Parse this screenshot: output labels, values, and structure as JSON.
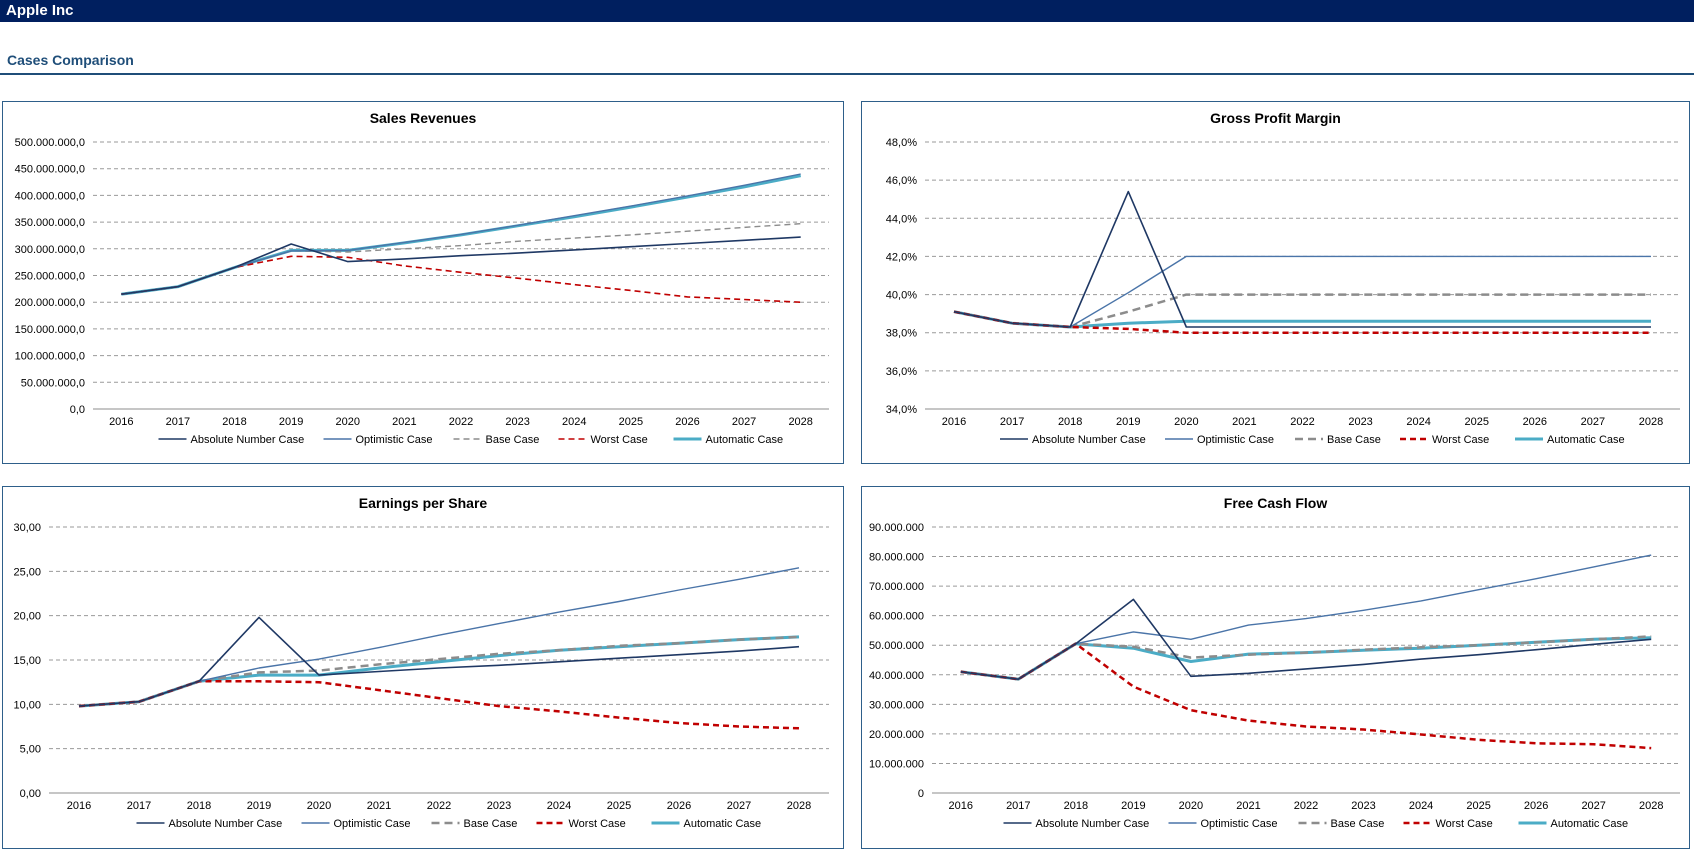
{
  "header": {
    "title": "Apple Inc"
  },
  "section": {
    "title": "Cases Comparison"
  },
  "chart_data": [
    {
      "id": "sales",
      "type": "line",
      "title": "Sales Revenues",
      "categories": [
        "2016",
        "2017",
        "2018",
        "2019",
        "2020",
        "2021",
        "2022",
        "2023",
        "2024",
        "2025",
        "2026",
        "2027",
        "2028"
      ],
      "ylim": [
        0,
        500000000
      ],
      "yticks": [
        0,
        50000000,
        100000000,
        150000000,
        200000000,
        250000000,
        300000000,
        350000000,
        400000000,
        450000000,
        500000000
      ],
      "ytick_labels": [
        "0,0",
        "50.000.000,0",
        "100.000.000,0",
        "150.000.000,0",
        "200.000.000,0",
        "250.000.000,0",
        "300.000.000,0",
        "350.000.000,0",
        "400.000.000,0",
        "450.000.000,0",
        "500.000.000,0"
      ],
      "grid": true,
      "legend_position": "bottom",
      "series": [
        {
          "name": "Absolute Number Case",
          "color": "#1f3864",
          "dash": "",
          "width": 1.6,
          "values": [
            215000000,
            229000000,
            265000000,
            309000000,
            276000000,
            281000000,
            287000000,
            292000000,
            298000000,
            304000000,
            310000000,
            316000000,
            322000000
          ]
        },
        {
          "name": "Optimistic Case",
          "color": "#4a74a8",
          "dash": "",
          "width": 1.4,
          "values": [
            215000000,
            229000000,
            265000000,
            296000000,
            297000000,
            312000000,
            327000000,
            344000000,
            362000000,
            380000000,
            399000000,
            419000000,
            440000000
          ]
        },
        {
          "name": "Base Case",
          "color": "#8c8c8c",
          "dash": "6,4",
          "width": 1.4,
          "values": [
            215000000,
            229000000,
            265000000,
            296000000,
            294000000,
            300000000,
            306000000,
            314000000,
            320000000,
            326000000,
            333000000,
            340000000,
            347000000
          ]
        },
        {
          "name": "Worst Case",
          "color": "#c00000",
          "dash": "6,4",
          "width": 1.6,
          "values": [
            215000000,
            229000000,
            265000000,
            286000000,
            284000000,
            268000000,
            256000000,
            245000000,
            233000000,
            222000000,
            210000000,
            205000000,
            200000000
          ]
        },
        {
          "name": "Automatic Case",
          "color": "#4bacc6",
          "dash": "",
          "width": 3,
          "values": [
            215000000,
            229000000,
            265000000,
            297000000,
            297000000,
            311000000,
            326000000,
            343000000,
            360000000,
            378000000,
            397000000,
            416000000,
            437000000
          ]
        }
      ]
    },
    {
      "id": "gpm",
      "type": "line",
      "title": "Gross Profit Margin",
      "categories": [
        "2016",
        "2017",
        "2018",
        "2019",
        "2020",
        "2021",
        "2022",
        "2023",
        "2024",
        "2025",
        "2026",
        "2027",
        "2028"
      ],
      "ylim": [
        34,
        48
      ],
      "yticks": [
        34,
        36,
        38,
        40,
        42,
        44,
        46,
        48
      ],
      "ytick_labels": [
        "34,0%",
        "36,0%",
        "38,0%",
        "40,0%",
        "42,0%",
        "44,0%",
        "46,0%",
        "48,0%"
      ],
      "grid": true,
      "legend_position": "bottom",
      "series": [
        {
          "name": "Absolute Number Case",
          "color": "#1f3864",
          "dash": "",
          "width": 1.6,
          "values": [
            39.1,
            38.5,
            38.3,
            45.4,
            38.3,
            38.3,
            38.3,
            38.3,
            38.3,
            38.3,
            38.3,
            38.3,
            38.3
          ]
        },
        {
          "name": "Optimistic Case",
          "color": "#4a74a8",
          "dash": "",
          "width": 1.4,
          "values": [
            39.1,
            38.5,
            38.3,
            40.1,
            42.0,
            42.0,
            42.0,
            42.0,
            42.0,
            42.0,
            42.0,
            42.0,
            42.0
          ]
        },
        {
          "name": "Base Case",
          "color": "#8c8c8c",
          "dash": "8,5",
          "width": 2.5,
          "values": [
            39.1,
            38.5,
            38.3,
            39.1,
            40.0,
            40.0,
            40.0,
            40.0,
            40.0,
            40.0,
            40.0,
            40.0,
            40.0
          ]
        },
        {
          "name": "Worst Case",
          "color": "#c00000",
          "dash": "6,4",
          "width": 2.5,
          "values": [
            39.1,
            38.5,
            38.3,
            38.2,
            38.0,
            38.0,
            38.0,
            38.0,
            38.0,
            38.0,
            38.0,
            38.0,
            38.0
          ]
        },
        {
          "name": "Automatic Case",
          "color": "#4bacc6",
          "dash": "",
          "width": 3,
          "values": [
            39.1,
            38.5,
            38.3,
            38.5,
            38.6,
            38.6,
            38.6,
            38.6,
            38.6,
            38.6,
            38.6,
            38.6,
            38.6
          ]
        }
      ]
    },
    {
      "id": "eps",
      "type": "line",
      "title": "Earnings per Share",
      "categories": [
        "2016",
        "2017",
        "2018",
        "2019",
        "2020",
        "2021",
        "2022",
        "2023",
        "2024",
        "2025",
        "2026",
        "2027",
        "2028"
      ],
      "ylim": [
        0,
        30
      ],
      "yticks": [
        0,
        5,
        10,
        15,
        20,
        25,
        30
      ],
      "ytick_labels": [
        "0,00",
        "5,00",
        "10,00",
        "15,00",
        "20,00",
        "25,00",
        "30,00"
      ],
      "grid": true,
      "legend_position": "bottom",
      "series": [
        {
          "name": "Absolute Number Case",
          "color": "#1f3864",
          "dash": "",
          "width": 1.6,
          "values": [
            9.8,
            10.3,
            12.6,
            19.8,
            13.3,
            13.7,
            14.1,
            14.4,
            14.8,
            15.2,
            15.6,
            16.0,
            16.5
          ]
        },
        {
          "name": "Optimistic Case",
          "color": "#4a74a8",
          "dash": "",
          "width": 1.4,
          "values": [
            9.8,
            10.3,
            12.6,
            14.1,
            15.1,
            16.4,
            17.8,
            19.1,
            20.4,
            21.6,
            22.9,
            24.1,
            25.4
          ]
        },
        {
          "name": "Base Case",
          "color": "#8c8c8c",
          "dash": "8,5",
          "width": 2.5,
          "values": [
            9.8,
            10.3,
            12.6,
            13.6,
            13.8,
            14.5,
            15.1,
            15.7,
            16.1,
            16.6,
            16.9,
            17.3,
            17.6
          ]
        },
        {
          "name": "Worst Case",
          "color": "#c00000",
          "dash": "6,4",
          "width": 2.5,
          "values": [
            9.8,
            10.3,
            12.6,
            12.6,
            12.5,
            11.6,
            10.7,
            9.8,
            9.2,
            8.5,
            7.9,
            7.5,
            7.3
          ]
        },
        {
          "name": "Automatic Case",
          "color": "#4bacc6",
          "dash": "",
          "width": 3,
          "values": [
            9.8,
            10.3,
            12.6,
            13.3,
            13.3,
            14.1,
            14.8,
            15.5,
            16.1,
            16.5,
            16.9,
            17.3,
            17.6
          ]
        }
      ]
    },
    {
      "id": "fcf",
      "type": "line",
      "title": "Free Cash Flow",
      "categories": [
        "2016",
        "2017",
        "2018",
        "2019",
        "2020",
        "2021",
        "2022",
        "2023",
        "2024",
        "2025",
        "2026",
        "2027",
        "2028"
      ],
      "ylim": [
        0,
        90000000
      ],
      "yticks": [
        0,
        10000000,
        20000000,
        30000000,
        40000000,
        50000000,
        60000000,
        70000000,
        80000000,
        90000000
      ],
      "ytick_labels": [
        "0",
        "10.000.000",
        "20.000.000",
        "30.000.000",
        "40.000.000",
        "50.000.000",
        "60.000.000",
        "70.000.000",
        "80.000.000",
        "90.000.000"
      ],
      "grid": true,
      "legend_position": "bottom",
      "series": [
        {
          "name": "Absolute Number Case",
          "color": "#1f3864",
          "dash": "",
          "width": 1.6,
          "values": [
            41000000,
            38500000,
            50500000,
            65500000,
            39500000,
            40500000,
            42000000,
            43500000,
            45300000,
            46800000,
            48500000,
            50300000,
            52000000
          ]
        },
        {
          "name": "Optimistic Case",
          "color": "#4a74a8",
          "dash": "",
          "width": 1.4,
          "values": [
            41000000,
            38500000,
            50500000,
            54500000,
            52000000,
            56800000,
            59000000,
            61800000,
            65000000,
            68800000,
            72500000,
            76500000,
            80500000
          ]
        },
        {
          "name": "Base Case",
          "color": "#8c8c8c",
          "dash": "8,5",
          "width": 2.5,
          "values": [
            41000000,
            38500000,
            50500000,
            49500000,
            45800000,
            46800000,
            47500000,
            48500000,
            49300000,
            50000000,
            51000000,
            52000000,
            53000000
          ]
        },
        {
          "name": "Worst Case",
          "color": "#c00000",
          "dash": "6,4",
          "width": 2.5,
          "values": [
            41000000,
            38500000,
            50500000,
            36000000,
            28000000,
            24500000,
            22500000,
            21500000,
            19800000,
            18000000,
            16800000,
            16500000,
            15200000
          ]
        },
        {
          "name": "Automatic Case",
          "color": "#4bacc6",
          "dash": "",
          "width": 3,
          "values": [
            41000000,
            38500000,
            50500000,
            49000000,
            44500000,
            47000000,
            47500000,
            48300000,
            49000000,
            50000000,
            51000000,
            52000000,
            52500000
          ]
        }
      ]
    }
  ]
}
